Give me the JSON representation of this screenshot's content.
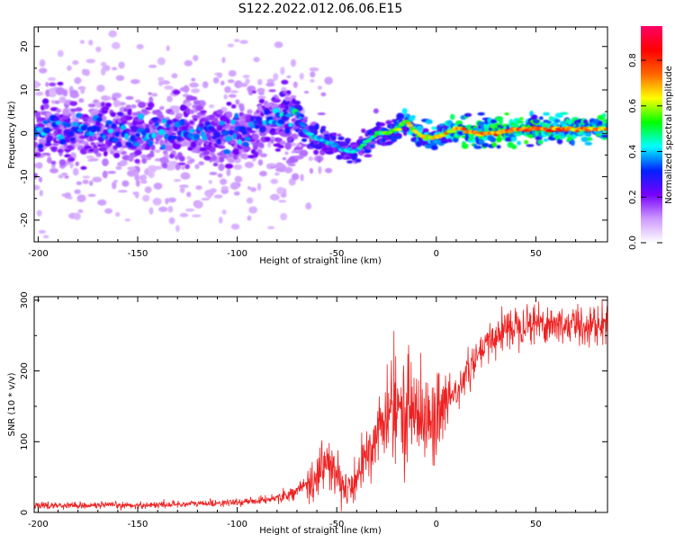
{
  "figure": {
    "title": "S122.2022.012.06.06.E15"
  },
  "chart_data": [
    {
      "type": "heatmap",
      "title": "S122.2022.012.06.06.E15",
      "xlabel": "Height of straight line (km)",
      "ylabel": "Frequency (Hz)",
      "xlim": [
        -202,
        86
      ],
      "ylim": [
        -25,
        24.5
      ],
      "xticks": [
        -200,
        -150,
        -100,
        -50,
        0,
        50
      ],
      "xtick_labels": [
        "-200",
        "-150",
        "-100",
        "-50",
        "0",
        "50"
      ],
      "yticks": [
        -20,
        -10,
        0,
        10,
        20
      ],
      "ytick_labels": [
        "-20",
        "-10",
        "0",
        "10",
        "20"
      ],
      "colorbar": {
        "label": "Normalized spectral amplitude",
        "range": [
          0,
          0.95
        ],
        "ticks": [
          0.0,
          0.2,
          0.4,
          0.6,
          0.8
        ],
        "tick_labels": [
          "0.0",
          "0.2",
          "0.4",
          "0.6",
          "0.8"
        ],
        "colors": [
          "#ffffff",
          "#cc99ff",
          "#7700ff",
          "#0022ff",
          "#00ffff",
          "#00ff00",
          "#ffff00",
          "#ff6600",
          "#ff0000",
          "#ff0066"
        ]
      },
      "signal_ridge": {
        "x": [
          -200,
          -175,
          -150,
          -125,
          -100,
          -85,
          -75,
          -70,
          -65,
          -60,
          -55,
          -50,
          -45,
          -40,
          -35,
          -30,
          -25,
          -20,
          -15,
          -10,
          -5,
          0,
          5,
          10,
          20,
          30,
          40,
          50,
          60,
          70,
          86
        ],
        "frequency": [
          1,
          0.5,
          0,
          0.5,
          0,
          2,
          4,
          5,
          0,
          -1,
          -2,
          -3,
          -4,
          -4,
          -2,
          0,
          0,
          1,
          3,
          0,
          -1,
          -1,
          0,
          1,
          0,
          0,
          1,
          1,
          1,
          1,
          1
        ],
        "amplitude": [
          0.3,
          0.3,
          0.3,
          0.3,
          0.3,
          0.3,
          0.35,
          0.4,
          0.4,
          0.4,
          0.4,
          0.4,
          0.4,
          0.4,
          0.45,
          0.45,
          0.5,
          0.55,
          0.6,
          0.6,
          0.6,
          0.6,
          0.65,
          0.7,
          0.7,
          0.75,
          0.75,
          0.75,
          0.7,
          0.7,
          0.7
        ]
      },
      "noise_region_x": [
        -202,
        -70
      ]
    },
    {
      "type": "line",
      "xlabel": "Height of straight line (km)",
      "ylabel": "SNR (10 * v/v)",
      "xlim": [
        -202,
        86
      ],
      "ylim": [
        0,
        305
      ],
      "xticks": [
        -200,
        -150,
        -100,
        -50,
        0,
        50
      ],
      "xtick_labels": [
        "-200",
        "-150",
        "-100",
        "-50",
        "0",
        "50"
      ],
      "yticks": [
        0,
        100,
        200,
        300
      ],
      "ytick_labels": [
        "0",
        "100",
        "200",
        "300"
      ],
      "line_color": "#ee2222",
      "series": [
        {
          "x": [
            -202,
            -150,
            -100,
            -85,
            -75,
            -70,
            -65,
            -60,
            -55,
            -50,
            -45,
            -40,
            -35,
            -30,
            -25,
            -20,
            -15,
            -10,
            -5,
            0,
            5,
            10,
            15,
            20,
            25,
            30,
            35,
            40,
            45,
            50,
            55,
            60,
            65,
            70,
            75,
            80,
            86
          ],
          "values": [
            10,
            10,
            14,
            18,
            25,
            30,
            40,
            55,
            70,
            50,
            30,
            45,
            80,
            115,
            130,
            140,
            150,
            145,
            125,
            130,
            150,
            170,
            195,
            215,
            235,
            250,
            260,
            265,
            270,
            268,
            268,
            265,
            265,
            265,
            265,
            265,
            265
          ]
        }
      ]
    }
  ]
}
